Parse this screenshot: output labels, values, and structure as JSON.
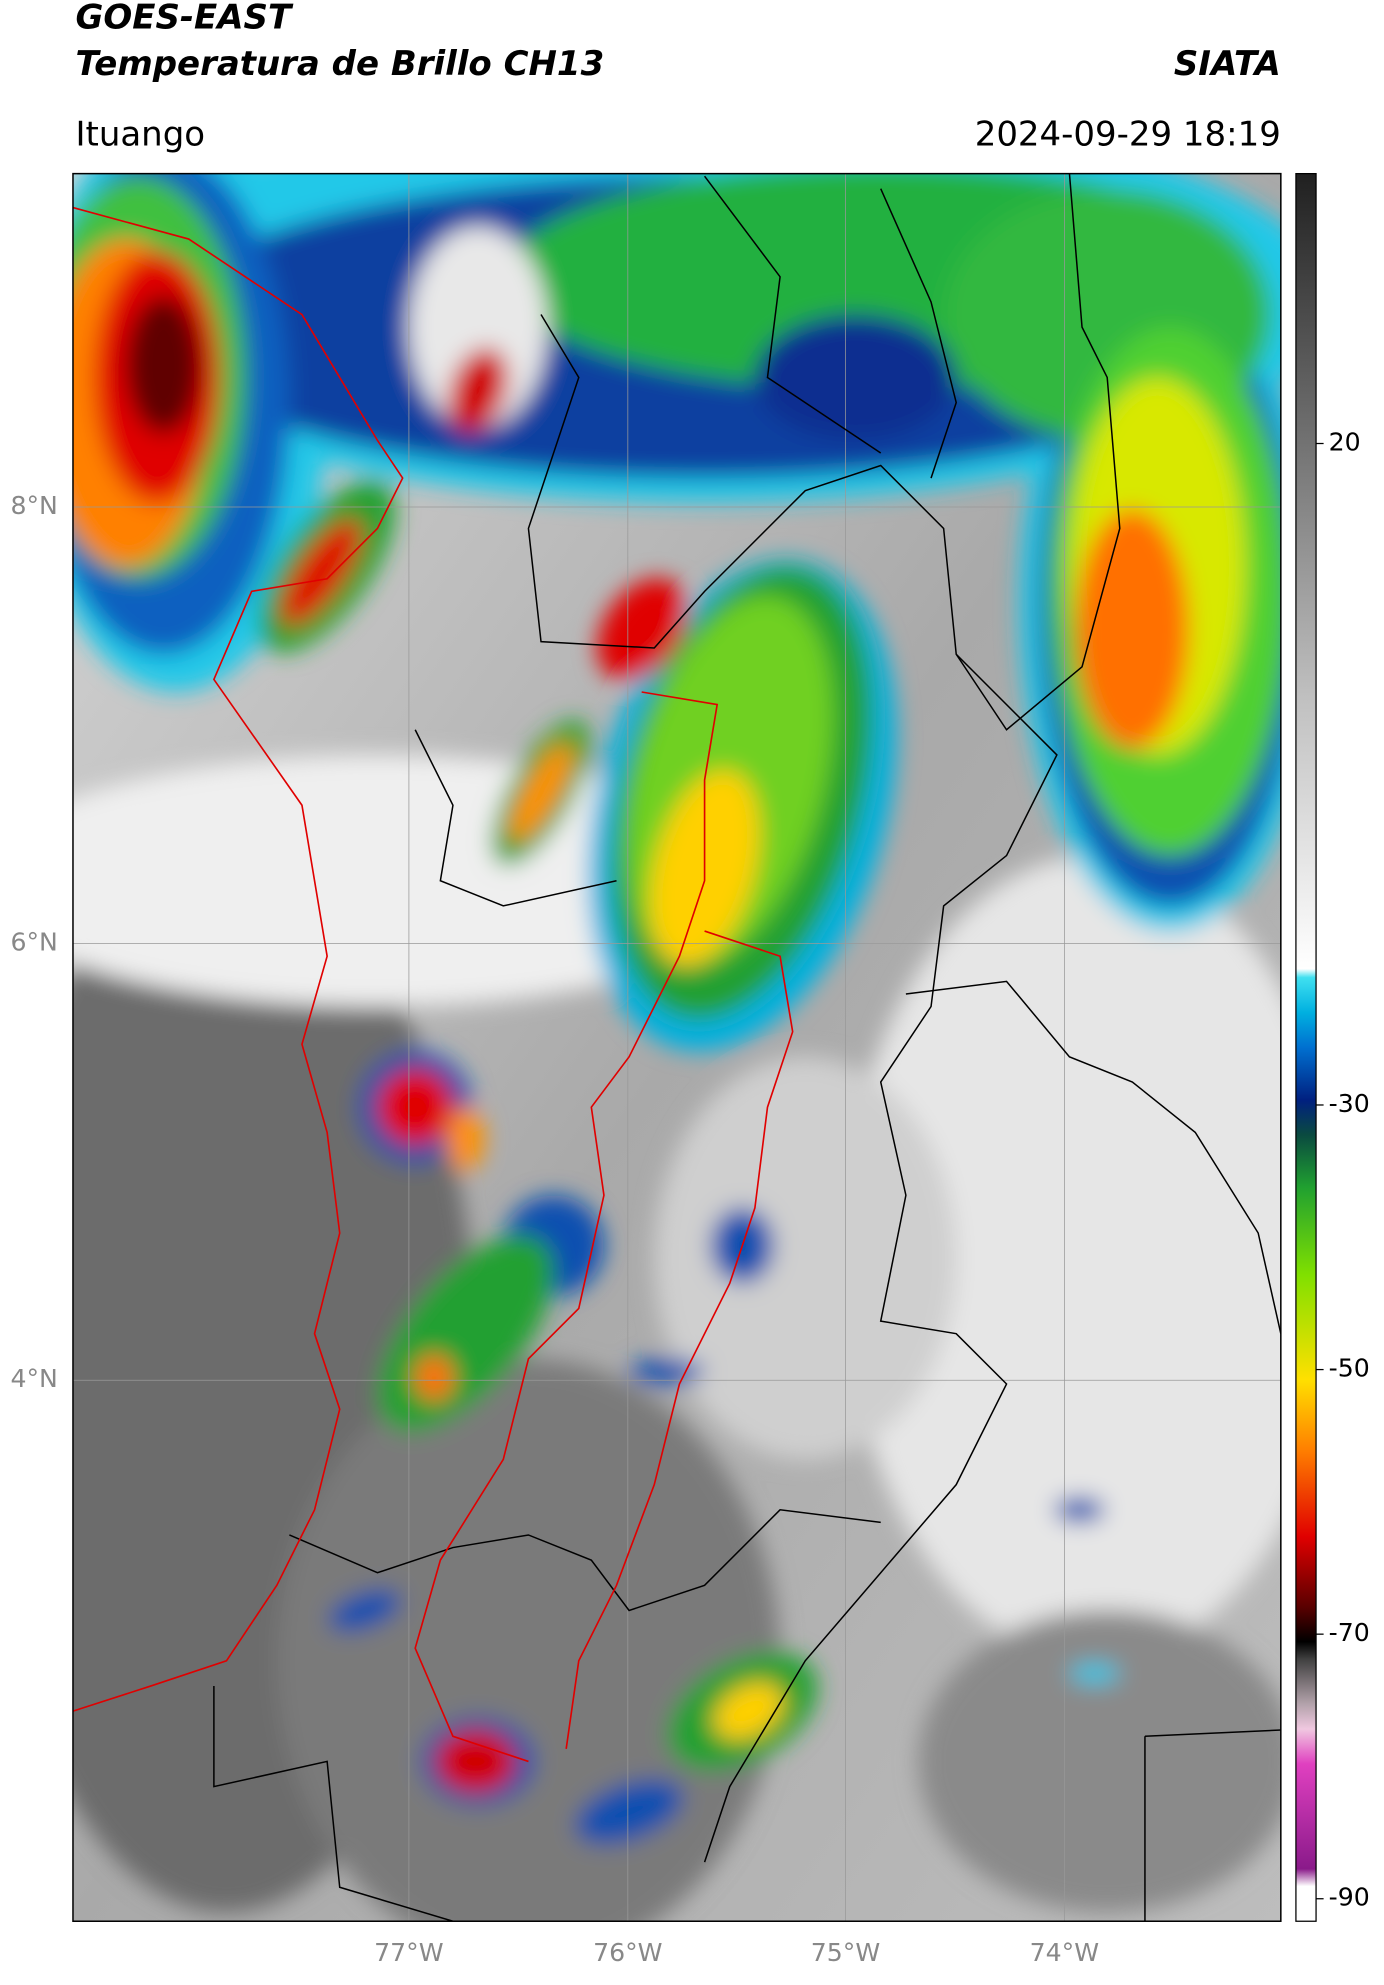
{
  "header": {
    "satellite": "GOES-EAST",
    "product": "Temperatura de Brillo CH13",
    "source": "SIATA",
    "region": "Ituango",
    "datetime": "2024-09-29 18:19"
  },
  "axes": {
    "lat_labels": [
      "8°N",
      "6°N",
      "4°N"
    ],
    "lon_labels": [
      "77°W",
      "76°W",
      "75°W",
      "74°W"
    ]
  },
  "colorbar": {
    "ticks": [
      20,
      -30,
      -50,
      -70,
      -90
    ]
  }
}
